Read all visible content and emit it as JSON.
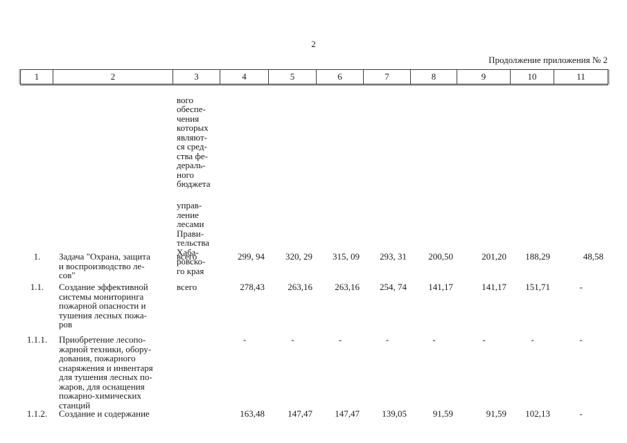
{
  "page": {
    "number": "2",
    "continuation_note": "Продолжение приложения № 2",
    "background_color": "#ffffff",
    "text_color": "#1b1b1b",
    "border_color": "#3c3c3c"
  },
  "table": {
    "column_numbers": [
      "1",
      "2",
      "3",
      "4",
      "5",
      "6",
      "7",
      "8",
      "9",
      "10",
      "11"
    ],
    "column3_carryover": {
      "paragraph1": "вого\nобеспе-\nчения\nкоторых\nявляют-\nся сред-\nства фе-\nдераль-\nного\nбюджета",
      "paragraph2": "управ-\nление\nлесами\nПрави-\nтельства\nХаба-\nровско-\nго края"
    },
    "rows": [
      {
        "num": "1.",
        "name": "Задача \"Охрана, защита\nи воспроизводство ле-\nсов\"",
        "source": "всего",
        "values": [
          "299, 94",
          "320, 29",
          "315, 09",
          "293, 31",
          "200,50",
          "201,20",
          "188,29",
          "48,58"
        ]
      },
      {
        "num": "1.1.",
        "name": "Создание эффективной\nсистемы мониторинга\nпожарной опасности и\nтушения лесных пожа-\nров",
        "source": "всего",
        "values": [
          "278,43",
          "263,16",
          "263,16",
          "254, 74",
          "141,17",
          "141,17",
          "151,71",
          "-"
        ]
      },
      {
        "num": "1.1.1.",
        "name": "Приобретение лесопо-\nжарной техники, обору-\nдования, пожарного\nснаряжения и инвентаря\nдля тушения лесных по-\nжаров, для оснащения\nпожарно-химических\nстанций",
        "source": "",
        "values": [
          "-",
          "-",
          "-",
          "-",
          "-",
          "-",
          "-",
          "-"
        ]
      },
      {
        "num": "1.1.2.",
        "name": "Создание и содержание",
        "source": "",
        "values": [
          "163,48",
          "147,47",
          "147,47",
          "139,05",
          "91,59",
          "91,59",
          "102,13",
          "-"
        ]
      }
    ]
  }
}
